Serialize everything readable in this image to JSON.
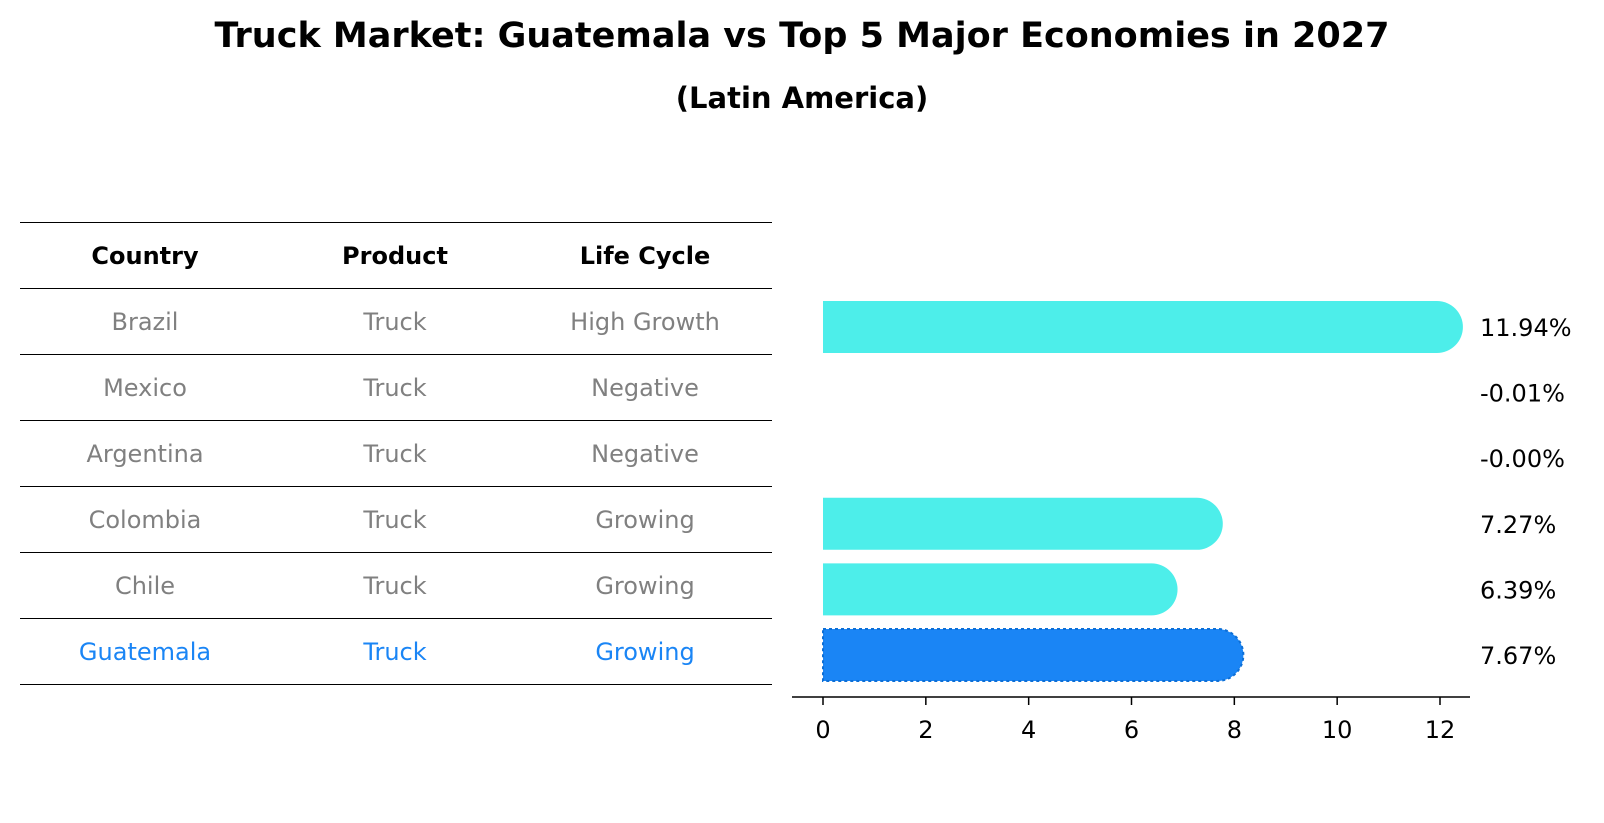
{
  "title": "Truck Market: Guatemala vs Top 5 Major Economies in 2027",
  "subtitle": "(Latin America)",
  "table": {
    "headers": [
      "Country",
      "Product",
      "Life Cycle"
    ],
    "rows": [
      {
        "country": "Brazil",
        "product": "Truck",
        "life_cycle": "High Growth"
      },
      {
        "country": "Mexico",
        "product": "Truck",
        "life_cycle": "Negative"
      },
      {
        "country": "Argentina",
        "product": "Truck",
        "life_cycle": "Negative"
      },
      {
        "country": "Colombia",
        "product": "Truck",
        "life_cycle": "Growing"
      },
      {
        "country": "Chile",
        "product": "Truck",
        "life_cycle": "Growing"
      },
      {
        "country": "Guatemala",
        "product": "Truck",
        "life_cycle": "Growing"
      }
    ]
  },
  "colors": {
    "bar": "#4deeea",
    "highlight": "#1a85f5",
    "muted_text": "#808080",
    "highlight_text": "#1a85f5"
  },
  "chart_data": {
    "type": "bar",
    "orientation": "horizontal",
    "categories": [
      "Brazil",
      "Mexico",
      "Argentina",
      "Colombia",
      "Chile",
      "Guatemala"
    ],
    "values": [
      11.94,
      -0.01,
      -0.0,
      7.27,
      6.39,
      7.67
    ],
    "labels": [
      "11.94%",
      "-0.01%",
      "-0.00%",
      "7.27%",
      "6.39%",
      "7.67%"
    ],
    "highlight": "Guatemala",
    "xlim": [
      -0.6,
      12.6
    ],
    "xticks": [
      0,
      2,
      4,
      6,
      8,
      10,
      12
    ],
    "xlabel": "",
    "ylabel": ""
  }
}
